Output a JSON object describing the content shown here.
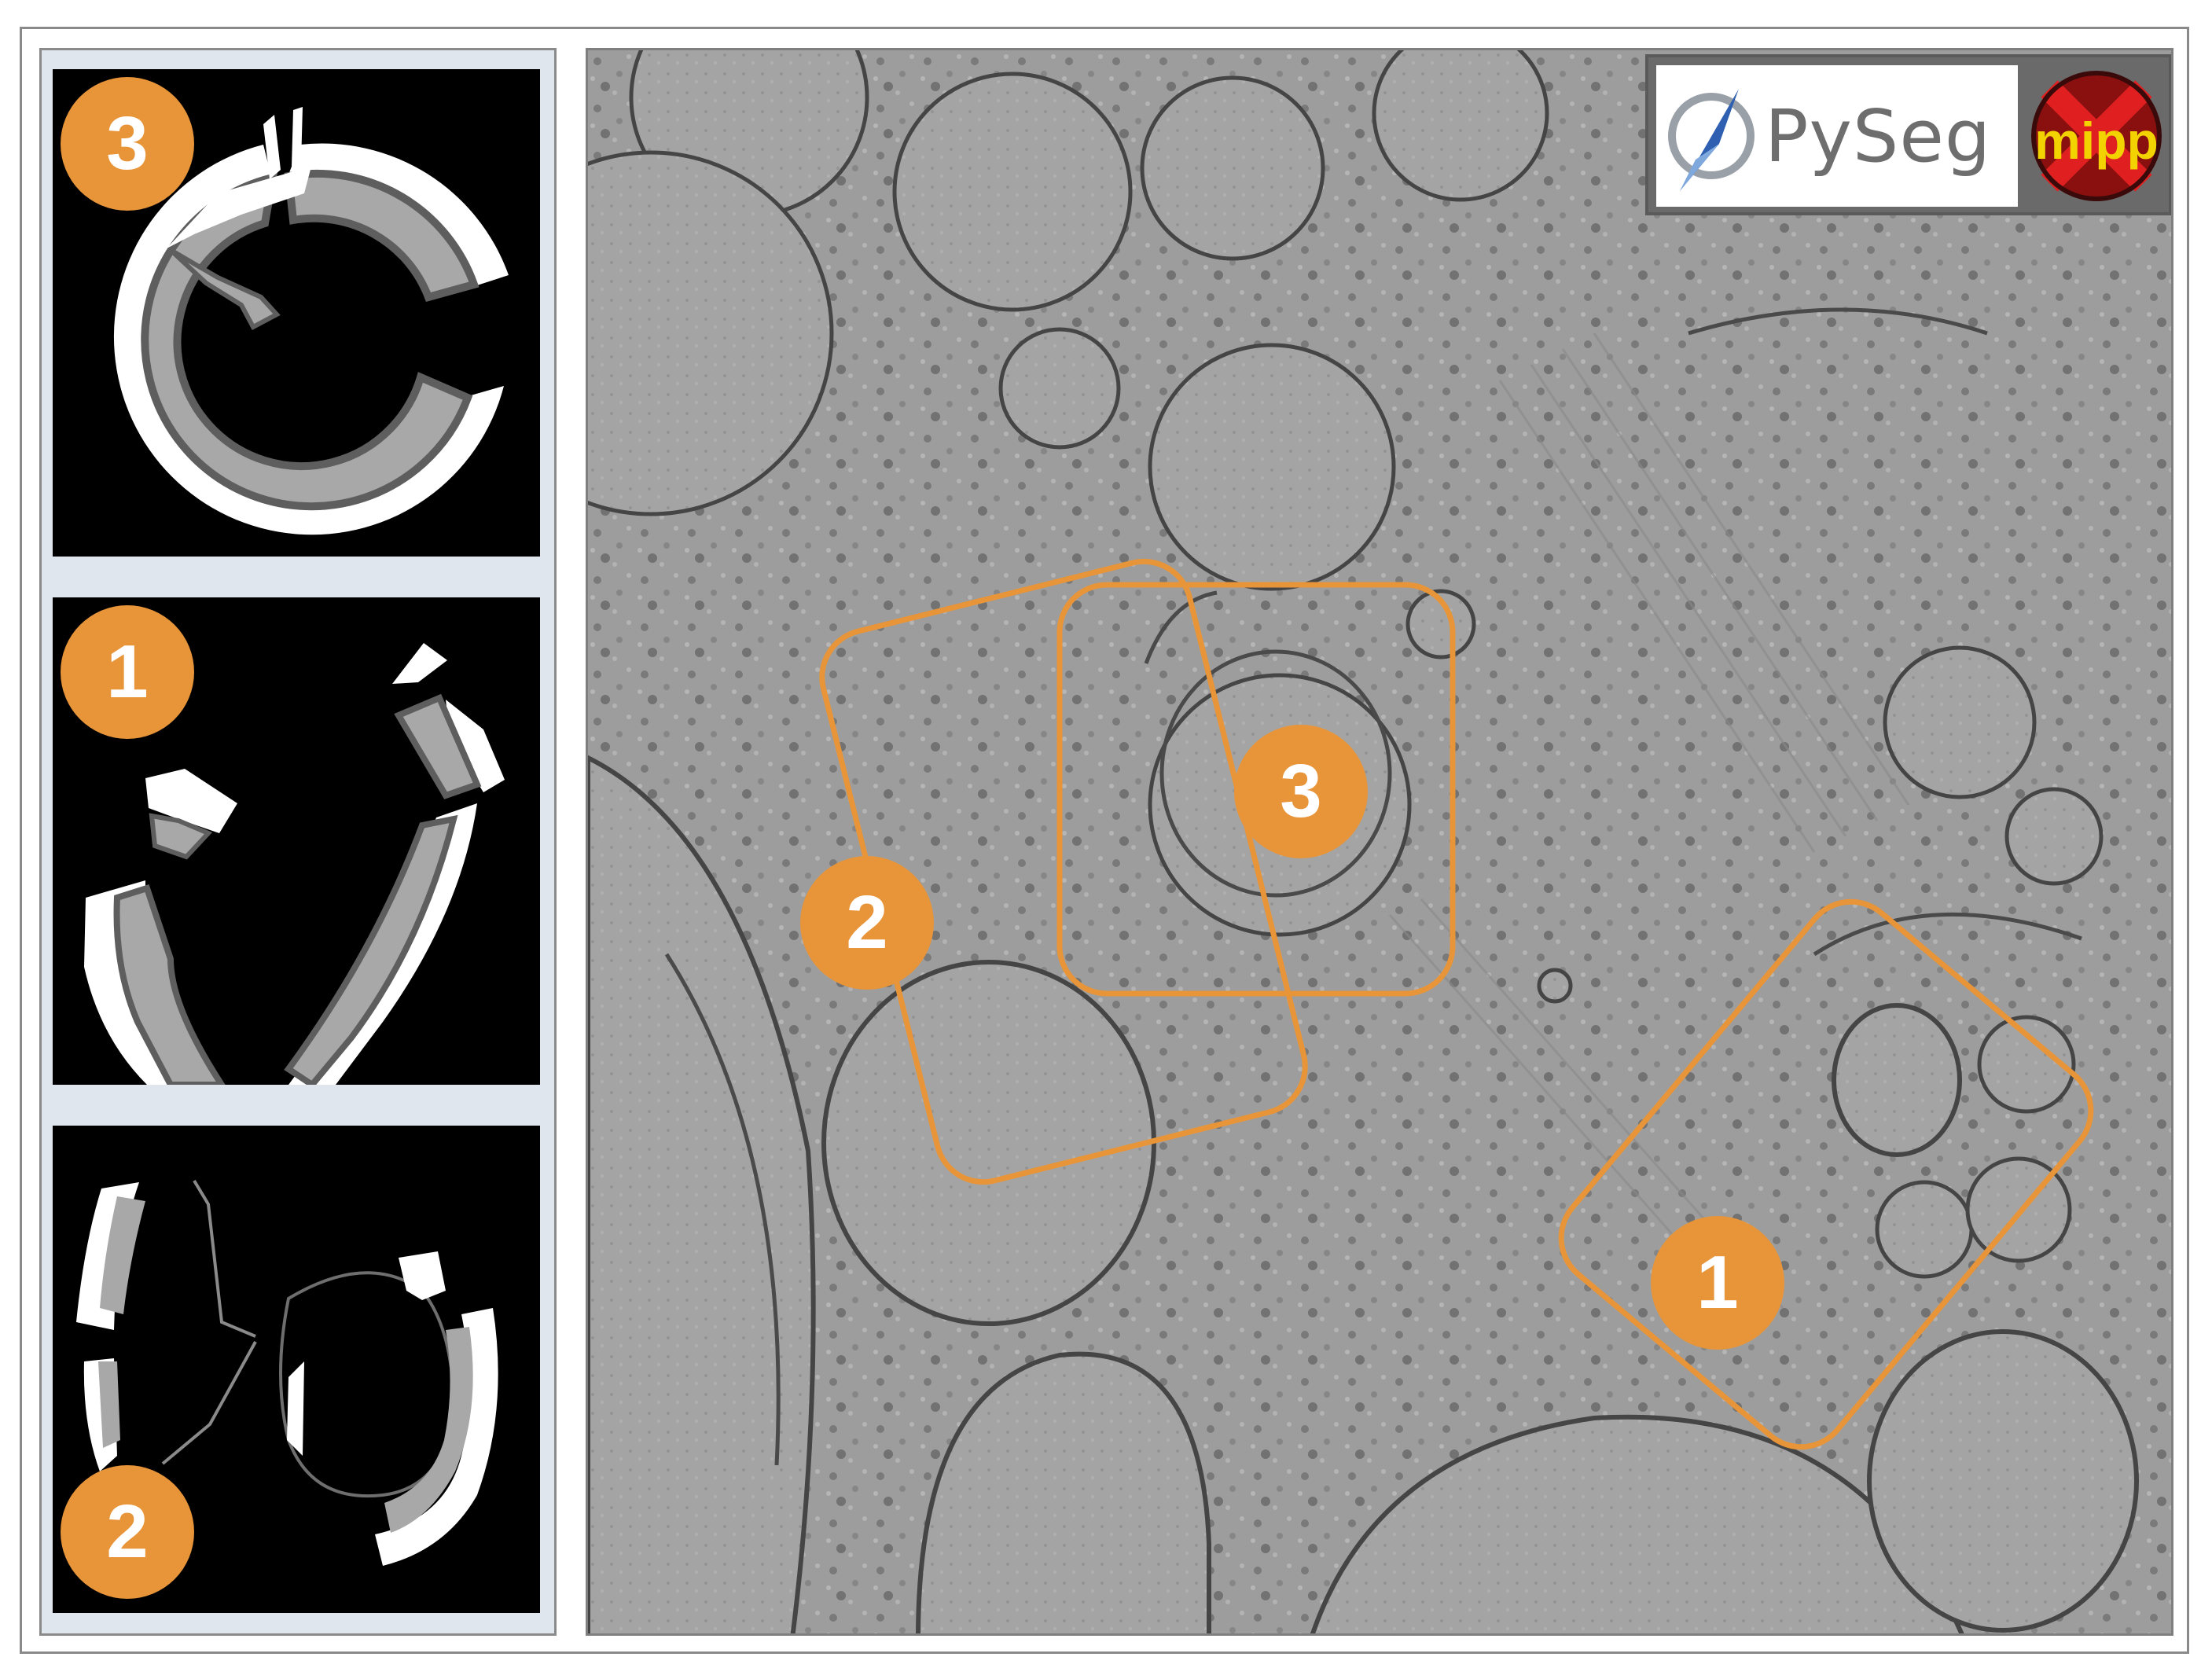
{
  "panels": [
    {
      "badge": "3"
    },
    {
      "badge": "1"
    },
    {
      "badge": "2"
    }
  ],
  "regions": [
    {
      "badge": "2"
    },
    {
      "badge": "3"
    },
    {
      "badge": "1"
    }
  ],
  "logos": {
    "pyseg": "PySeg",
    "mipp": "mipp"
  },
  "colors": {
    "accent": "#e8953a",
    "membrane_white": "#ffffff",
    "membrane_gray": "#a8a8a8",
    "membrane_dark": "#5e5e5e",
    "tomogram_gray": "#9c9c9c"
  }
}
